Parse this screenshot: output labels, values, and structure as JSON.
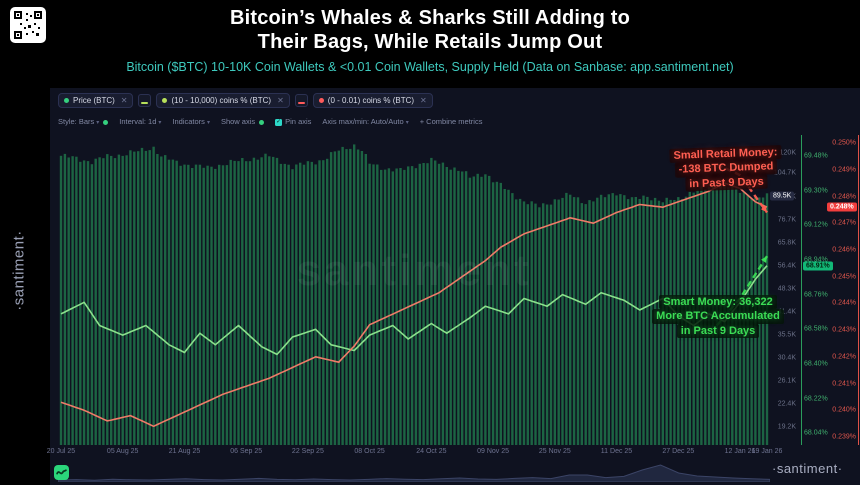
{
  "header": {
    "title_line1": "Bitcoin’s Whales & Sharks Still Adding to",
    "title_line2": "Their Bags, While Retails Jump Out",
    "subtitle": "Bitcoin ($BTC) 10-10K Coin Wallets & <0.01 Coin Wallets, Supply Held (Data on Sanbase: app.santiment.net)"
  },
  "branding": {
    "left_watermark": "·santiment·",
    "chart_watermark": "santiment",
    "footer_watermark": "·santiment·"
  },
  "chips": [
    {
      "label": "Price (BTC)",
      "dot": "#35d07f"
    },
    {
      "label": "(10 - 10,000) coins % (BTC)",
      "dot": "#b7e05a"
    },
    {
      "label": "(0 - 0.01) coins % (BTC)",
      "dot": "#ff5b5b"
    }
  ],
  "toolbar": {
    "style": "Style: Bars",
    "interval": "Interval: 1d",
    "indicators": "Indicators",
    "show_axis": "Show axis",
    "pin_axis": "Pin axis",
    "axis_maxmin": "Axis max/min: Auto/Auto",
    "combine": "+ Combine metrics"
  },
  "annotations": {
    "retail": {
      "color": "#ff5f52",
      "lines": [
        "Small Retail Money:",
        "-138 BTC Dumped",
        "in Past 9 Days"
      ]
    },
    "smart": {
      "color": "#3bdc55",
      "lines": [
        "Smart Money: 36,322",
        "More BTC Accumulated",
        "in Past 9 Days"
      ]
    }
  },
  "chart_data": {
    "type": "mixed",
    "title": "Bitcoin ($BTC) price vs supply held by 10-10K coin wallets and <0.01 coin wallets",
    "x_range_days": 183,
    "x_tick_days": [
      0,
      16,
      32,
      48,
      64,
      80,
      96,
      112,
      128,
      144,
      160,
      176,
      183
    ],
    "x_tick_labels": [
      "20 Jul 25",
      "05 Aug 25",
      "21 Aug 25",
      "06 Sep 25",
      "22 Sep 25",
      "08 Oct 25",
      "24 Oct 25",
      "09 Nov 25",
      "25 Nov 25",
      "11 Dec 25",
      "27 Dec 25",
      "12 Jan 26",
      "19 Jan 26"
    ],
    "series": [
      {
        "name": "Price (BTC)",
        "type": "bar",
        "axis": "price",
        "color": "#1f7048",
        "anchors": [
          [
            0,
            117.5
          ],
          [
            4,
            115.5
          ],
          [
            8,
            113
          ],
          [
            12,
            117
          ],
          [
            16,
            118.5
          ],
          [
            20,
            121
          ],
          [
            24,
            124.4
          ],
          [
            26,
            117
          ],
          [
            30,
            112.5
          ],
          [
            34,
            110
          ],
          [
            38,
            108.5
          ],
          [
            42,
            111
          ],
          [
            46,
            113.5
          ],
          [
            50,
            115.5
          ],
          [
            54,
            117.3
          ],
          [
            58,
            112
          ],
          [
            60,
            109
          ],
          [
            64,
            112
          ],
          [
            68,
            114.5
          ],
          [
            72,
            122
          ],
          [
            76,
            126.1
          ],
          [
            78,
            121.5
          ],
          [
            80,
            111.5
          ],
          [
            84,
            108
          ],
          [
            88,
            106.5
          ],
          [
            92,
            110.5
          ],
          [
            96,
            113.8
          ],
          [
            100,
            110
          ],
          [
            104,
            106
          ],
          [
            106,
            101.5
          ],
          [
            110,
            104.8
          ],
          [
            112,
            99.5
          ],
          [
            116,
            93
          ],
          [
            120,
            86.5
          ],
          [
            124,
            83.8
          ],
          [
            128,
            87.3
          ],
          [
            132,
            90.5
          ],
          [
            136,
            86
          ],
          [
            140,
            88.8
          ],
          [
            144,
            92.2
          ],
          [
            148,
            87.6
          ],
          [
            152,
            89.9
          ],
          [
            156,
            86.3
          ],
          [
            160,
            88.4
          ],
          [
            164,
            92.5
          ],
          [
            168,
            95.2
          ],
          [
            172,
            97.8
          ],
          [
            174,
            94
          ],
          [
            178,
            91.2
          ],
          [
            180,
            88.6
          ],
          [
            183,
            89.5
          ]
        ]
      },
      {
        "name": "(10 - 10,000) coins % (BTC)",
        "type": "line",
        "axis": "green",
        "color": "#8be08b",
        "anchors": [
          [
            0,
            68.66
          ],
          [
            6,
            68.72
          ],
          [
            10,
            68.6
          ],
          [
            16,
            68.55
          ],
          [
            22,
            68.6
          ],
          [
            28,
            68.5
          ],
          [
            32,
            68.46
          ],
          [
            36,
            68.56
          ],
          [
            40,
            68.5
          ],
          [
            46,
            68.6
          ],
          [
            52,
            68.49
          ],
          [
            56,
            68.45
          ],
          [
            60,
            68.54
          ],
          [
            66,
            68.58
          ],
          [
            70,
            68.5
          ],
          [
            76,
            68.47
          ],
          [
            80,
            68.55
          ],
          [
            86,
            68.6
          ],
          [
            90,
            68.53
          ],
          [
            96,
            68.61
          ],
          [
            100,
            68.56
          ],
          [
            106,
            68.64
          ],
          [
            110,
            68.7
          ],
          [
            116,
            68.66
          ],
          [
            120,
            68.74
          ],
          [
            126,
            68.7
          ],
          [
            130,
            68.76
          ],
          [
            136,
            68.71
          ],
          [
            140,
            68.77
          ],
          [
            146,
            68.73
          ],
          [
            150,
            68.68
          ],
          [
            156,
            68.74
          ],
          [
            160,
            68.65
          ],
          [
            164,
            68.6
          ],
          [
            168,
            68.66
          ],
          [
            172,
            68.62
          ],
          [
            176,
            68.72
          ],
          [
            180,
            68.84
          ],
          [
            183,
            68.91
          ]
        ]
      },
      {
        "name": "(0 - 0.01) coins % (BTC)",
        "type": "line",
        "axis": "red",
        "color": "#ef7b68",
        "anchors": [
          [
            0,
            0.2403
          ],
          [
            6,
            0.24
          ],
          [
            12,
            0.2396
          ],
          [
            18,
            0.2398
          ],
          [
            24,
            0.2394
          ],
          [
            30,
            0.2398
          ],
          [
            36,
            0.2402
          ],
          [
            42,
            0.2406
          ],
          [
            48,
            0.2409
          ],
          [
            54,
            0.2412
          ],
          [
            60,
            0.2416
          ],
          [
            66,
            0.242
          ],
          [
            72,
            0.2418
          ],
          [
            76,
            0.2424
          ],
          [
            80,
            0.2432
          ],
          [
            86,
            0.2436
          ],
          [
            92,
            0.244
          ],
          [
            98,
            0.2444
          ],
          [
            104,
            0.245
          ],
          [
            110,
            0.2456
          ],
          [
            114,
            0.2461
          ],
          [
            120,
            0.2466
          ],
          [
            126,
            0.2469
          ],
          [
            132,
            0.2472
          ],
          [
            138,
            0.247
          ],
          [
            144,
            0.2474
          ],
          [
            150,
            0.2477
          ],
          [
            156,
            0.2476
          ],
          [
            162,
            0.2479
          ],
          [
            168,
            0.2482
          ],
          [
            172,
            0.2485
          ],
          [
            176,
            0.2483
          ],
          [
            180,
            0.2478
          ],
          [
            183,
            0.2476
          ]
        ]
      }
    ],
    "axes": {
      "price": {
        "scale": "log",
        "domain": [
          17,
          135
        ],
        "label_values": [
          120,
          104.7,
          89.5,
          76.7,
          65.8,
          56.4,
          48.3,
          41.4,
          35.5,
          30.4,
          26.1,
          22.4,
          19.2
        ],
        "labels": [
          "120K",
          "104.7K",
          "89.5K",
          "76.7K",
          "65.8K",
          "56.4K",
          "48.3K",
          "41.4K",
          "35.5K",
          "30.4K",
          "26.1K",
          "22.4K",
          "19.2K"
        ],
        "badge": {
          "text": "89.5K",
          "value": 89.5
        }
      },
      "green": {
        "scale": "linear",
        "domain": [
          67.98,
          69.588
        ],
        "label_values": [
          69.48,
          69.3,
          69.12,
          68.94,
          68.76,
          68.58,
          68.4,
          68.22,
          68.04
        ],
        "labels": [
          "69.48%",
          "69.30%",
          "69.12%",
          "68.94%",
          "68.76%",
          "68.58%",
          "68.40%",
          "68.22%",
          "68.04%"
        ],
        "badge": {
          "text": "68.91%",
          "value": 68.91
        }
      },
      "red": {
        "scale": "linear",
        "domain": [
          0.2387,
          0.2503
        ],
        "label_values": [
          0.25,
          0.249,
          0.248,
          0.247,
          0.246,
          0.245,
          0.244,
          0.243,
          0.242,
          0.241,
          0.24,
          0.239
        ],
        "labels": [
          "0.250%",
          "0.249%",
          "0.248%",
          "0.247%",
          "0.246%",
          "0.245%",
          "0.244%",
          "0.243%",
          "0.242%",
          "0.241%",
          "0.240%",
          "0.239%"
        ],
        "badge": {
          "text": "0.248%",
          "value": 0.2476
        }
      }
    },
    "arrows": [
      {
        "axis": "green",
        "color": "#3bdc55",
        "pts": [
          [
            170,
            68.6
          ],
          [
            176,
            68.74
          ],
          [
            183,
            68.96
          ]
        ]
      },
      {
        "axis": "red",
        "color": "#ff5f52",
        "pts": [
          [
            170,
            0.2492
          ],
          [
            176,
            0.2488
          ],
          [
            183,
            0.2474
          ]
        ]
      }
    ],
    "navigator": {
      "values": [
        0.1,
        0.12,
        0.09,
        0.14,
        0.11,
        0.1,
        0.13,
        0.16,
        0.12,
        0.1,
        0.14,
        0.18,
        0.13,
        0.11,
        0.15,
        0.12,
        0.1,
        0.13,
        0.17,
        0.14,
        0.12,
        0.16,
        0.2,
        0.15,
        0.13,
        0.18,
        0.22,
        0.17,
        0.35,
        0.35,
        0.22,
        0.28,
        0.6,
        0.85,
        0.45,
        0.3,
        0.25,
        0.2,
        0.16,
        0.13
      ]
    }
  }
}
